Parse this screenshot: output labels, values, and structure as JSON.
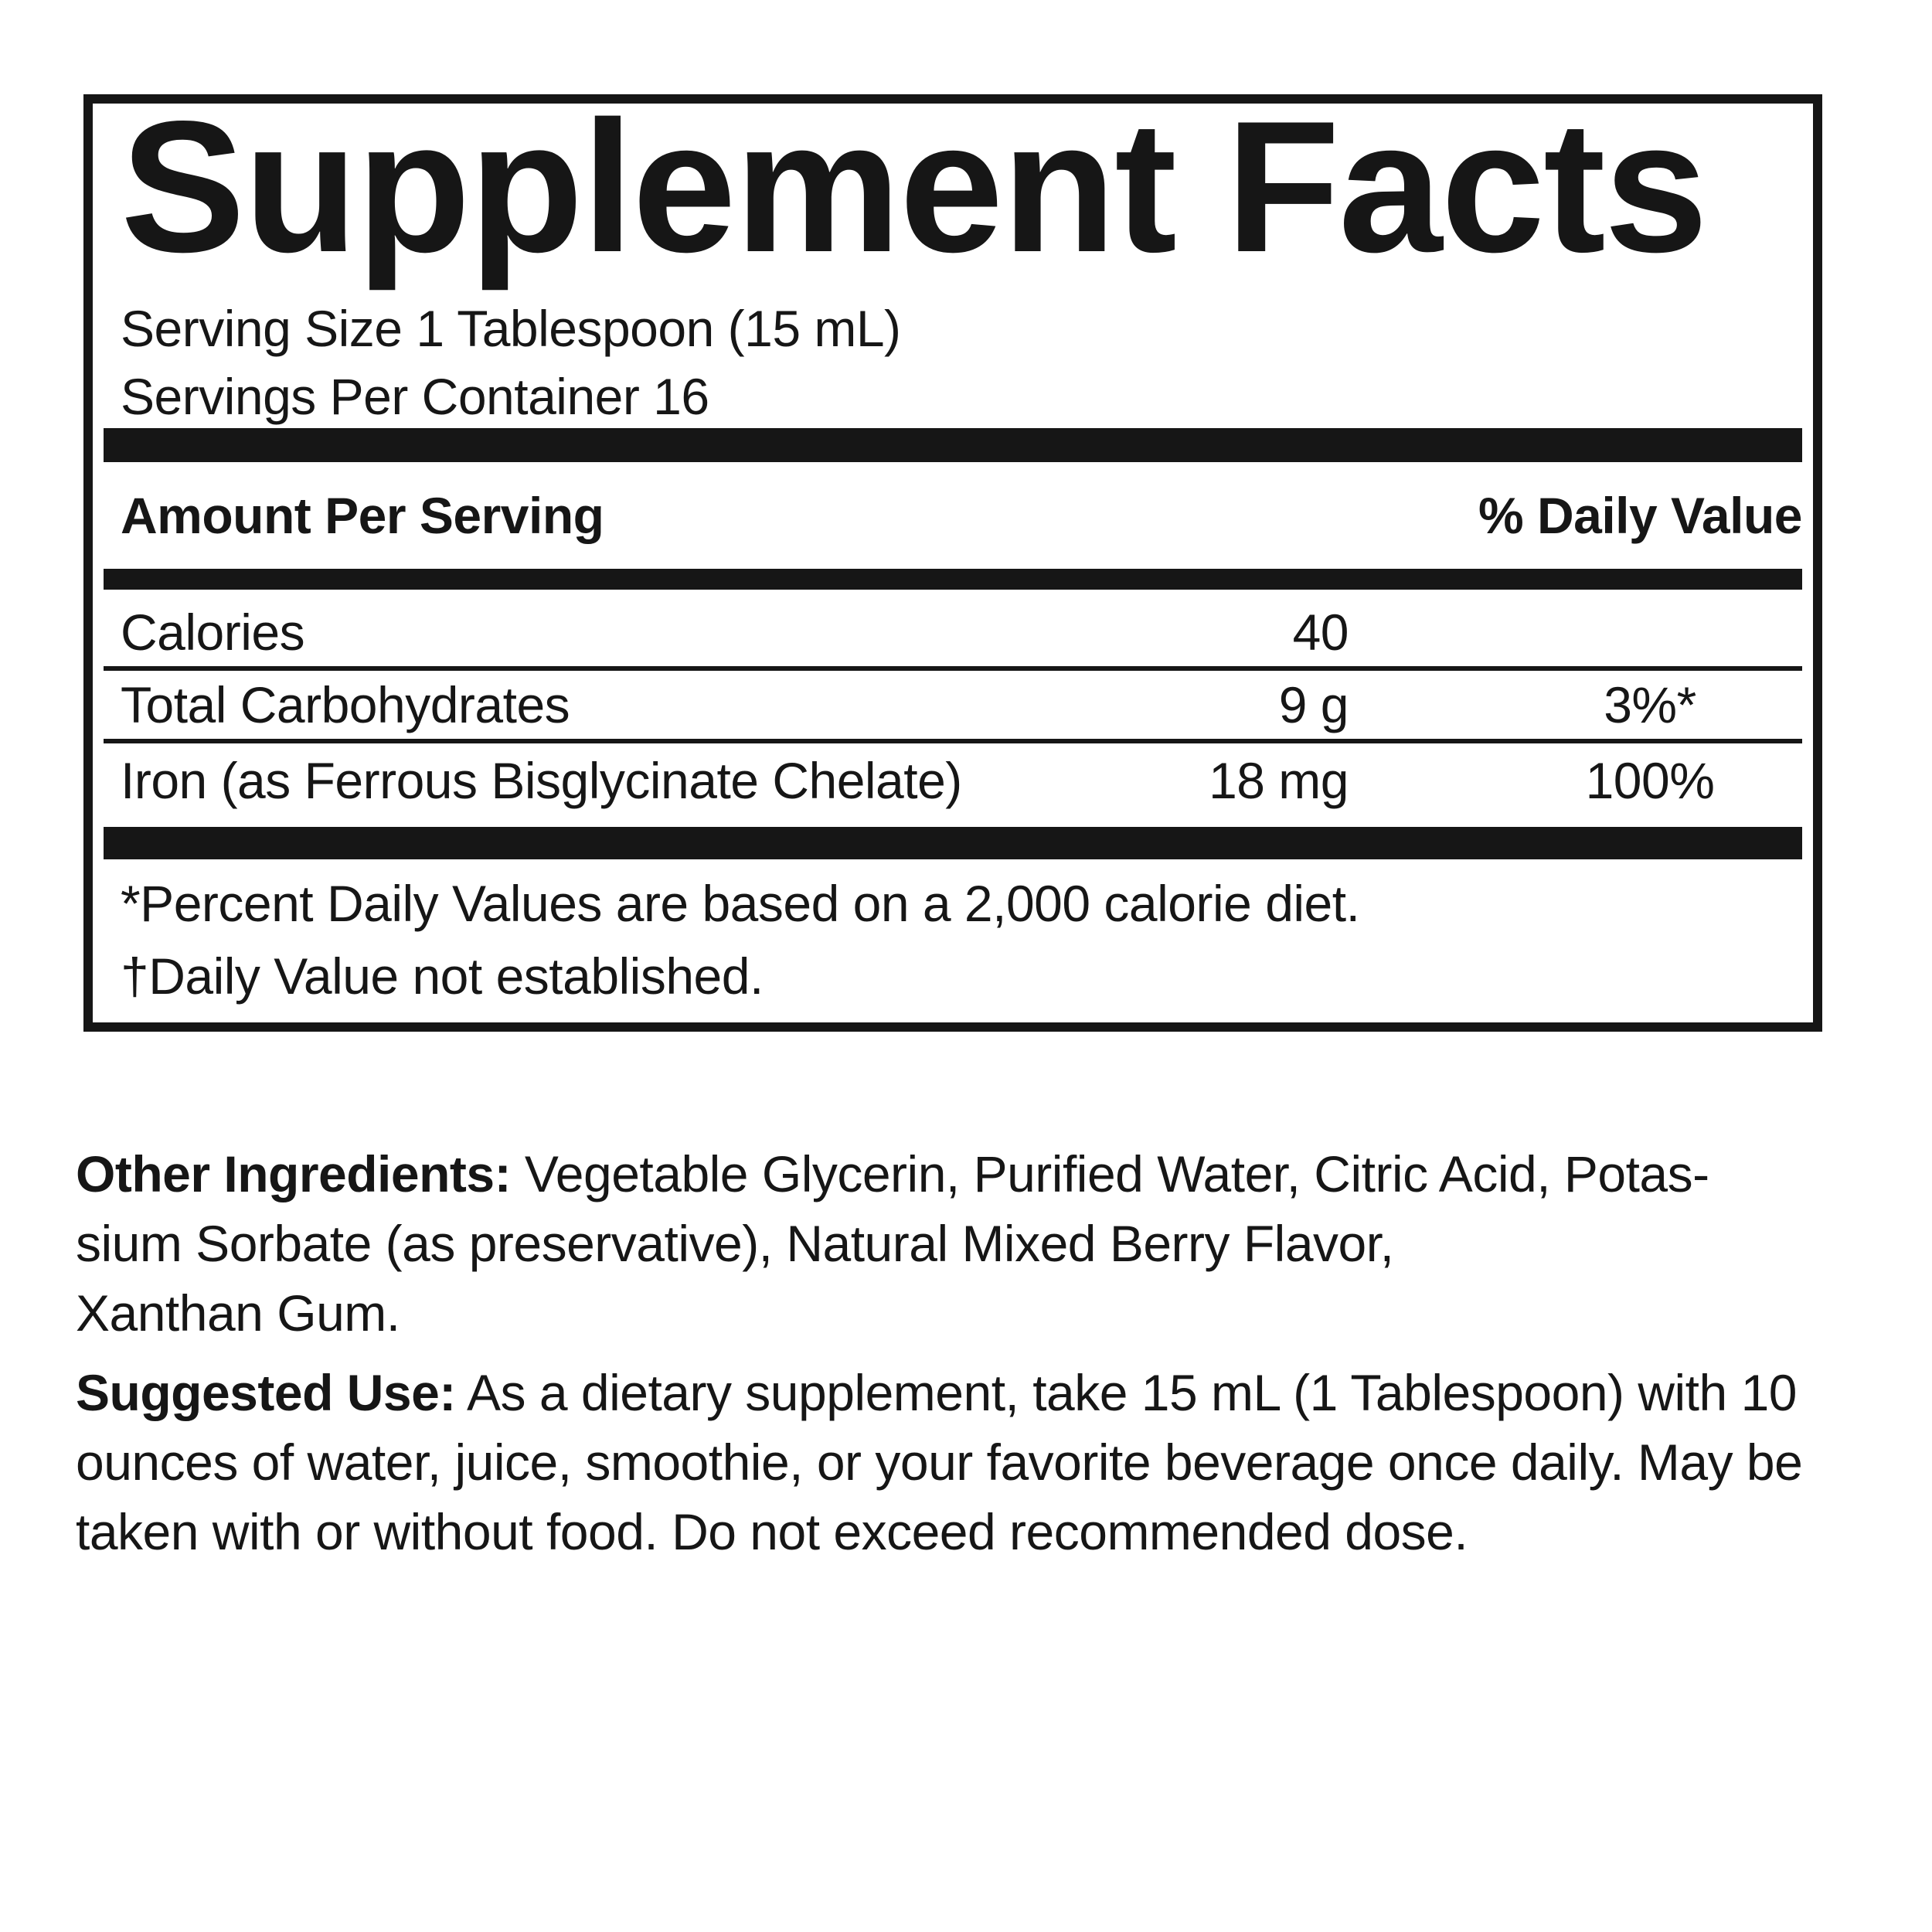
{
  "page": {
    "background_color": "#ffffff",
    "text_color": "#161616"
  },
  "panel": {
    "title": "Supplement Facts",
    "serving_size_line": "Serving Size 1 Tablespoon (15 mL)",
    "servings_line": "Servings Per Container 16",
    "header": {
      "amount_label": "Amount Per Serving",
      "dv_label": "% Daily Value"
    },
    "rows": [
      {
        "name": "Calories",
        "amount": "40",
        "dv": ""
      },
      {
        "name": "Total Carbohydrates",
        "amount": "9 g",
        "dv": "3%*"
      },
      {
        "name": "Iron (as Ferrous Bisglycinate Chelate)",
        "amount": "18 mg",
        "dv": "100%"
      }
    ],
    "footnotes": "*Percent Daily Values are based on a 2,000 calorie diet.\n†Daily Value not established."
  },
  "paragraphs": [
    {
      "label": "Other Ingredients:",
      "text": " Vegetable Glycerin, Purified Water, Citric Acid, Potas-\nsium Sorbate (as preservative), Natural Mixed Berry Flavor,\nXanthan Gum."
    },
    {
      "label": "Suggested Use:",
      "text": " As a dietary supplement, take 15 mL (1 Tablespoon) with 10\nounces of water, juice, smoothie, or your favorite beverage once daily. May be\ntaken with or without food. Do not exceed recommended dose."
    }
  ]
}
